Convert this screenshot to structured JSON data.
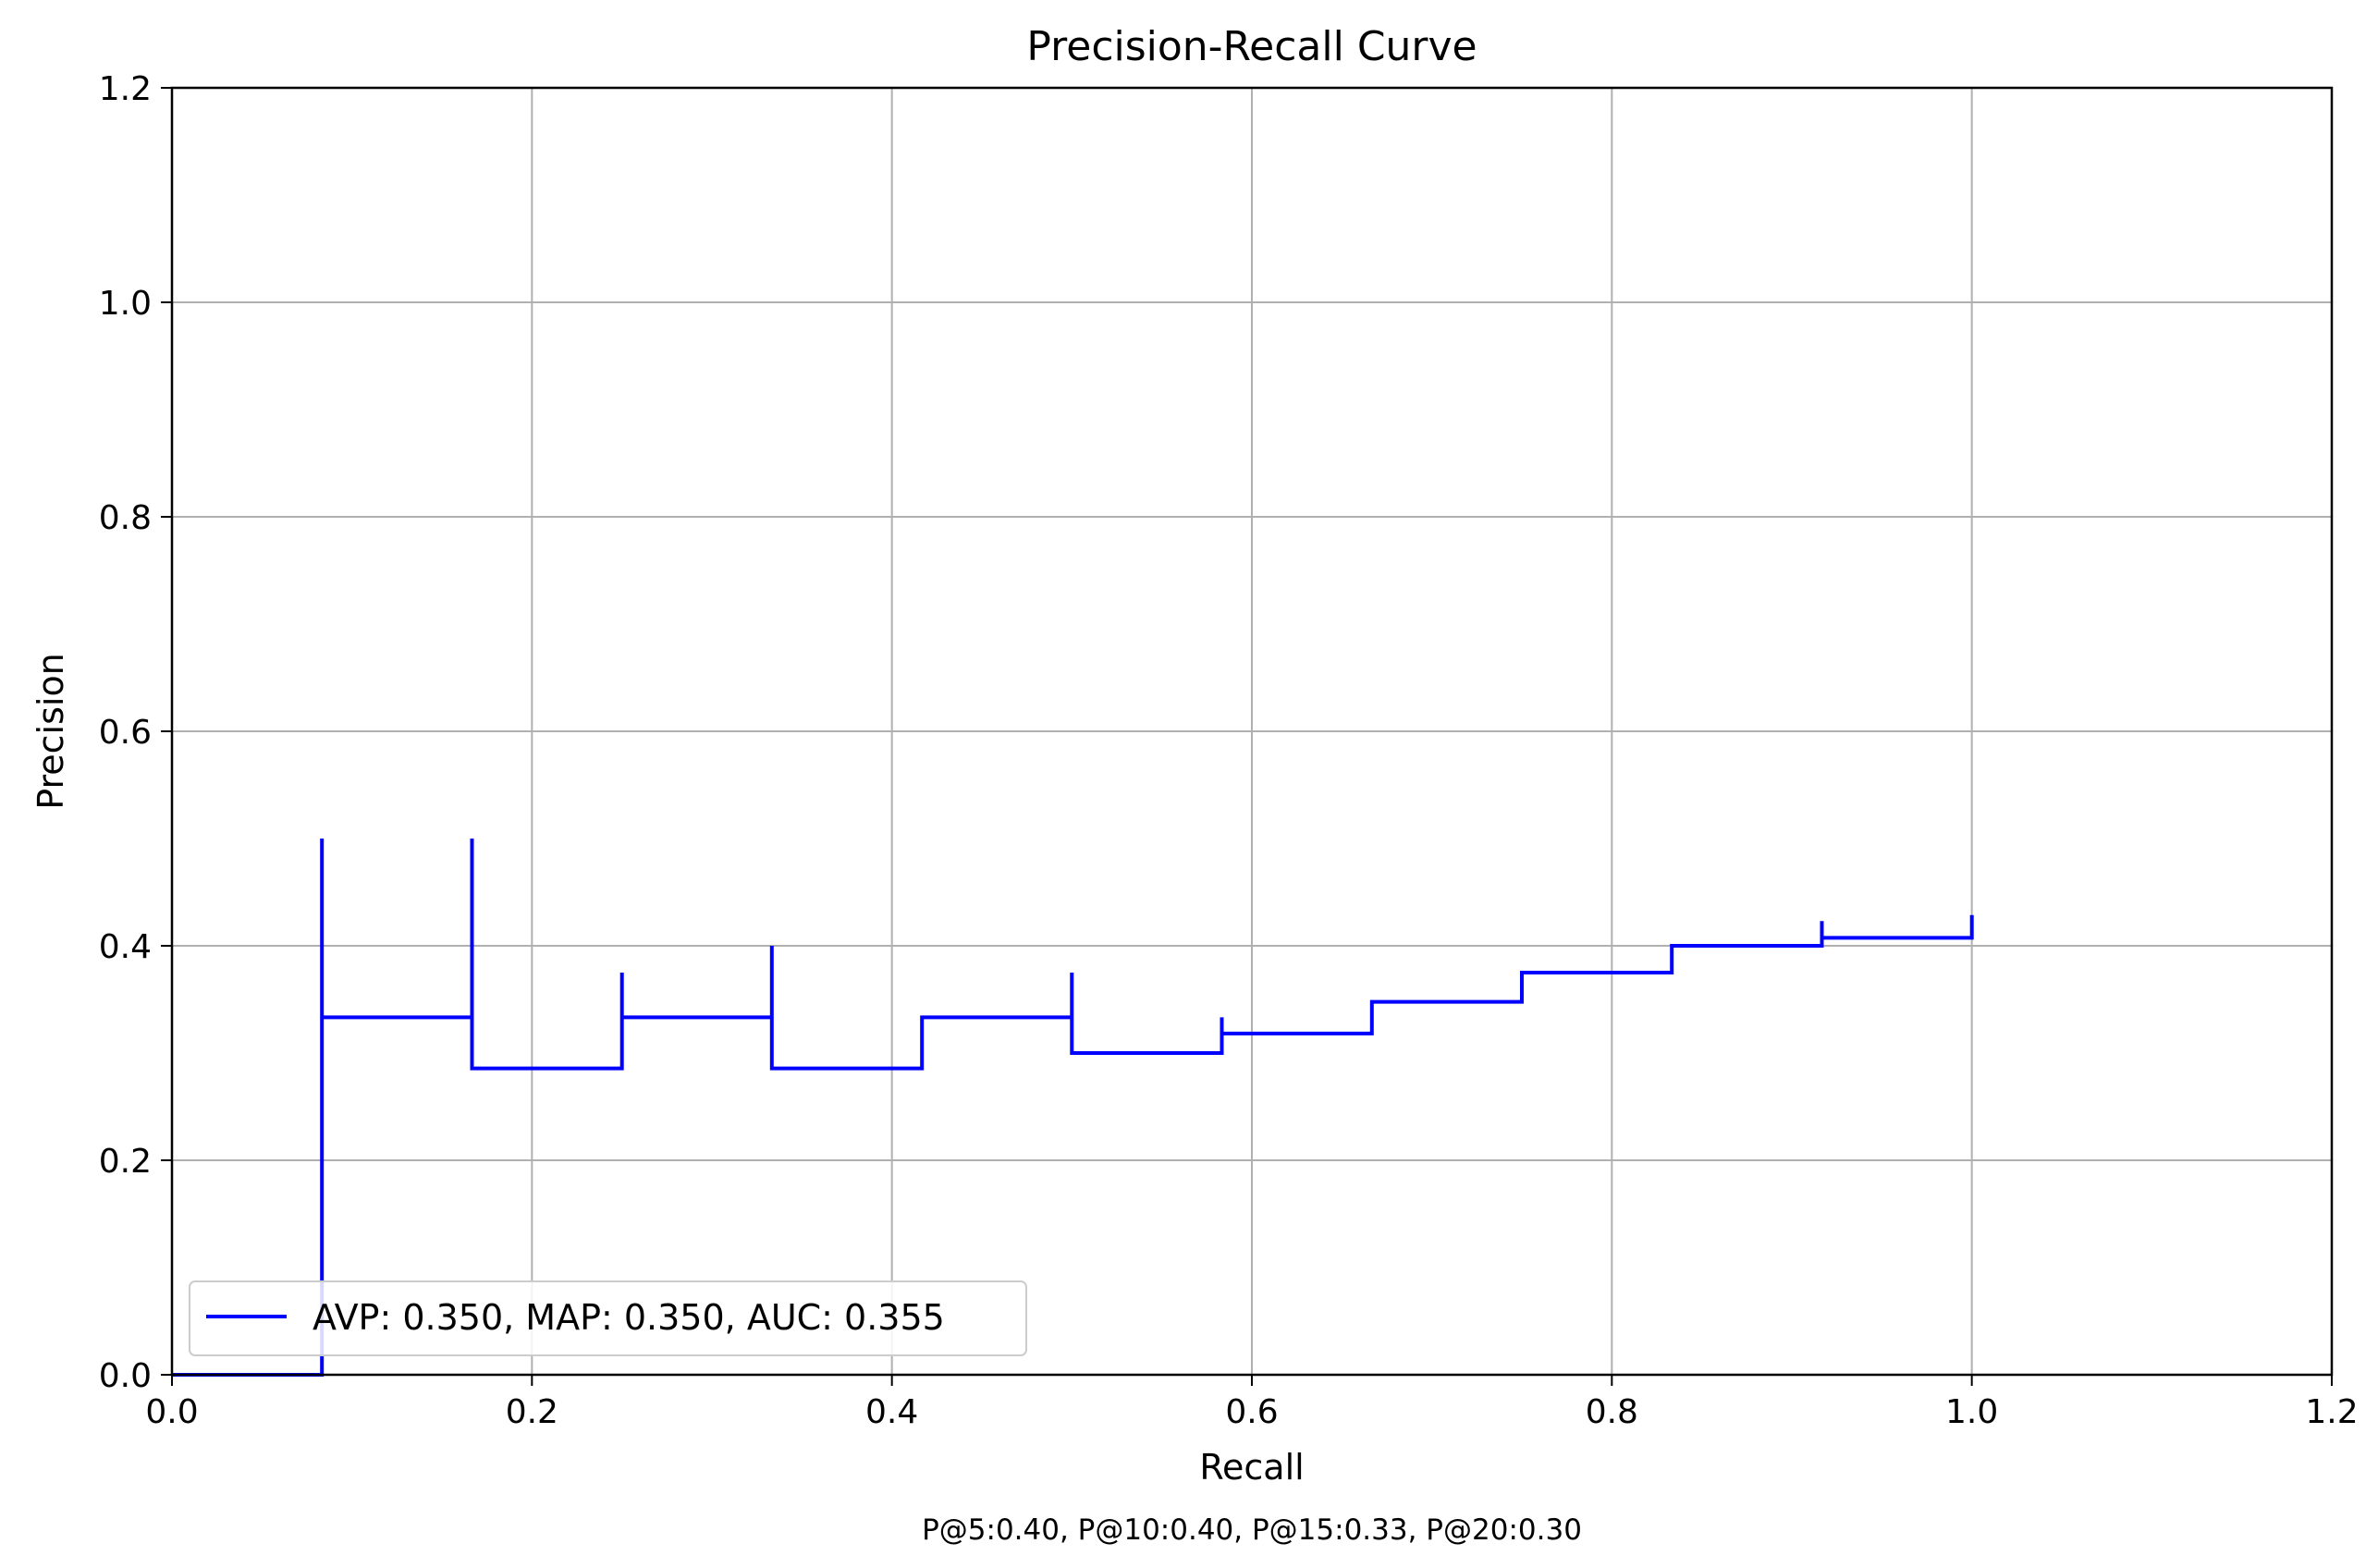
{
  "chart_data": {
    "type": "line",
    "title": "Precision-Recall Curve",
    "xlabel": "Recall",
    "ylabel": "Precision",
    "xlim": [
      0.0,
      1.2
    ],
    "ylim": [
      0.0,
      1.2
    ],
    "x_ticks": [
      "0.0",
      "0.2",
      "0.4",
      "0.6",
      "0.8",
      "1.0",
      "1.2"
    ],
    "y_ticks": [
      "0.0",
      "0.2",
      "0.4",
      "0.6",
      "0.8",
      "1.0",
      "1.2"
    ],
    "grid": true,
    "legend_position": "lower left",
    "footer_text": "P@5:0.40, P@10:0.40, P@15:0.33, P@20:0.30",
    "series": [
      {
        "name": "AVP: 0.350, MAP: 0.350, AUC: 0.355",
        "color": "#0000ff",
        "step": "post",
        "x": [
          0.0,
          0.0833,
          0.0833,
          0.0833,
          0.1667,
          0.1667,
          0.1667,
          0.25,
          0.25,
          0.25,
          0.3333,
          0.3333,
          0.3333,
          0.4167,
          0.4167,
          0.5,
          0.5,
          0.5,
          0.5833,
          0.5833,
          0.5833,
          0.6667,
          0.6667,
          0.75,
          0.75,
          0.8333,
          0.8333,
          0.9167,
          0.9167,
          0.9167,
          1.0,
          1.0
        ],
        "y": [
          0.0,
          0.0,
          0.5,
          0.3333,
          0.3333,
          0.5,
          0.2857,
          0.2857,
          0.375,
          0.3333,
          0.3333,
          0.4,
          0.2857,
          0.2857,
          0.3333,
          0.3333,
          0.375,
          0.3,
          0.3,
          0.3333,
          0.3182,
          0.3182,
          0.3478,
          0.3478,
          0.375,
          0.375,
          0.4,
          0.4,
          0.4231,
          0.4074,
          0.4074,
          0.4286
        ]
      }
    ]
  }
}
